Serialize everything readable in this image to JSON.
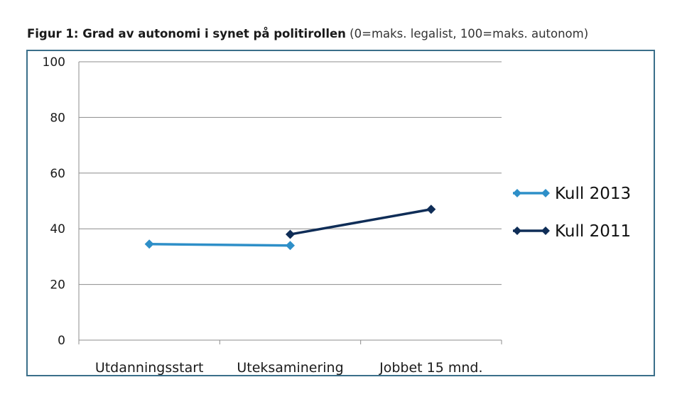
{
  "title": {
    "bold": "Figur 1: Grad av autonomi i synet på politirollen",
    "rest": " (0=maks. legalist, 100=maks. autonom)"
  },
  "chart_data": {
    "type": "line",
    "title": "Figur 1: Grad av autonomi i synet på politirollen (0=maks. legalist, 100=maks. autonom)",
    "categories": [
      "Utdanningsstart",
      "Uteksaminering",
      "Jobbet 15 mnd."
    ],
    "series": [
      {
        "name": "Kull 2013",
        "color": "#2e8fc8",
        "values": [
          34.5,
          34,
          null
        ]
      },
      {
        "name": "Kull 2011",
        "color": "#0f2d57",
        "values": [
          null,
          38,
          47
        ]
      }
    ],
    "ylim": [
      0,
      100
    ],
    "yticks": [
      0,
      20,
      40,
      60,
      80,
      100
    ],
    "grid": true,
    "legend": "right",
    "marker": "diamond"
  }
}
